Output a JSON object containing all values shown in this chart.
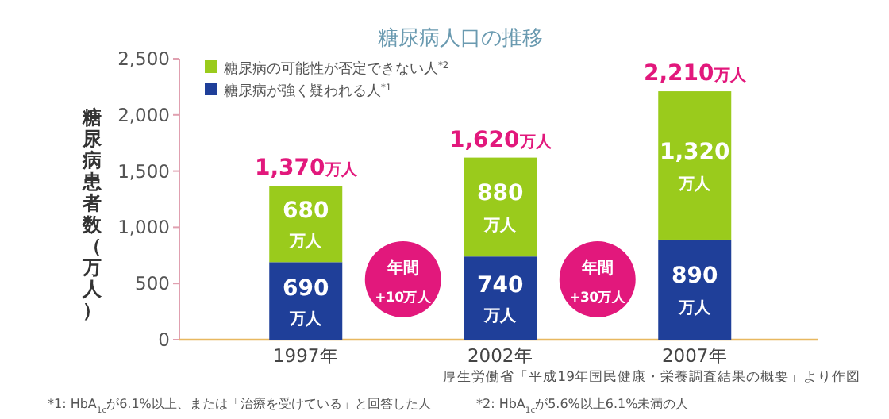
{
  "chart_data": {
    "type": "bar",
    "title": "糖尿病人口の推移",
    "ylabel": "糖尿病患者数（万人）",
    "categories": [
      "1997年",
      "2002年",
      "2007年"
    ],
    "stacked": true,
    "legend": "top left",
    "series": [
      {
        "name": "糖尿病が強く疑われる人$^{*1}$",
        "color": "#1f3f99",
        "values": [
          690,
          740,
          890
        ],
        "value_labels": [
          "690万人",
          "740万人",
          "890万人"
        ]
      },
      {
        "name": "糖尿病の可能性が否定できない人$^{*2}$",
        "color": "#9acb1c",
        "values": [
          680,
          880,
          1320
        ],
        "value_labels": [
          "680万人",
          "880万人",
          "1,320万人"
        ]
      }
    ],
    "totals": [
      "1,370万人",
      "1,620万人",
      "2,210万人"
    ],
    "ylim": [
      0,
      2500
    ],
    "yticks": [
      0,
      500,
      {
        "value": 1000,
        "label": "1,000"
      },
      {
        "value": 1500,
        "label": "1,500"
      },
      {
        "value": 2000,
        "label": "2,000"
      },
      {
        "value": 2500,
        "label": "2,500"
      }
    ],
    "annotations": [
      "年間+10万人",
      "年間+30万人",
      "厚生労働省「平成19年国民健康・栄養調査結果の概要」より作図",
      "*1: HbA$_{1c}$が6.1%以上、または「治療を受けている」と回答した人",
      "*2: HbA$_{1c}$が5.6%以上6.1%未満の人"
    ]
  }
}
